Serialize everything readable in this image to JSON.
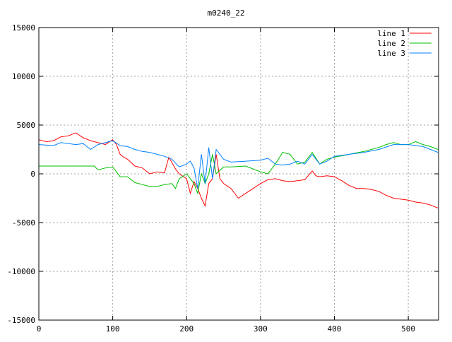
{
  "chart_data": {
    "type": "line",
    "title": "m0240_22",
    "xlabel": "",
    "ylabel": "",
    "xlim": [
      0,
      541
    ],
    "ylim": [
      -15000,
      15000
    ],
    "xticks": [
      0,
      100,
      200,
      300,
      400,
      500
    ],
    "yticks": [
      -15000,
      -10000,
      -5000,
      0,
      5000,
      10000,
      15000
    ],
    "grid": true,
    "legend_position": "top-right",
    "series": [
      {
        "name": "line 1",
        "color": "#ff0000",
        "x": [
          0,
          10,
          20,
          30,
          40,
          50,
          60,
          70,
          80,
          90,
          100,
          105,
          110,
          115,
          120,
          130,
          140,
          150,
          160,
          170,
          176,
          185,
          190,
          200,
          205,
          210,
          215,
          220,
          225,
          230,
          235,
          240,
          245,
          250,
          260,
          270,
          280,
          290,
          300,
          310,
          320,
          330,
          340,
          350,
          360,
          370,
          375,
          380,
          390,
          400,
          410,
          420,
          430,
          440,
          450,
          460,
          470,
          480,
          490,
          500,
          510,
          520,
          530,
          540
        ],
        "y": [
          3500,
          3300,
          3400,
          3800,
          3900,
          4200,
          3700,
          3400,
          3200,
          3000,
          3500,
          3000,
          2000,
          1700,
          1500,
          800,
          600,
          0,
          200,
          100,
          1700,
          500,
          0,
          -500,
          -2000,
          -800,
          -1500,
          -2500,
          -3300,
          -1000,
          -500,
          2000,
          -500,
          -1000,
          -1500,
          -2500,
          -2000,
          -1500,
          -1000,
          -600,
          -500,
          -700,
          -800,
          -700,
          -600,
          300,
          -200,
          -300,
          -200,
          -300,
          -700,
          -1200,
          -1500,
          -1500,
          -1600,
          -1800,
          -2200,
          -2500,
          -2600,
          -2700,
          -2900,
          -3000,
          -3200,
          -3500
        ]
      },
      {
        "name": "line 2",
        "color": "#00c000",
        "x": [
          0,
          75,
          80,
          90,
          100,
          110,
          120,
          130,
          140,
          150,
          160,
          170,
          180,
          185,
          190,
          200,
          210,
          215,
          220,
          225,
          230,
          235,
          240,
          250,
          260,
          280,
          290,
          300,
          310,
          320,
          330,
          340,
          350,
          360,
          370,
          380,
          390,
          400,
          420,
          440,
          460,
          470,
          480,
          490,
          500,
          510,
          520,
          530,
          540
        ],
        "y": [
          800,
          800,
          400,
          600,
          700,
          -300,
          -300,
          -900,
          -1100,
          -1300,
          -1300,
          -1100,
          -1000,
          -1500,
          -500,
          0,
          -1000,
          -2000,
          0,
          -1000,
          0,
          2000,
          0,
          700,
          700,
          800,
          500,
          200,
          0,
          1000,
          2200,
          2000,
          1000,
          1200,
          2200,
          1000,
          1500,
          1700,
          2000,
          2300,
          2700,
          3000,
          3200,
          3000,
          3000,
          3300,
          3000,
          2800,
          2500
        ]
      },
      {
        "name": "line 3",
        "color": "#0080ff",
        "x": [
          0,
          20,
          30,
          50,
          60,
          70,
          80,
          100,
          110,
          120,
          130,
          140,
          150,
          160,
          170,
          180,
          190,
          200,
          205,
          210,
          215,
          220,
          225,
          230,
          235,
          240,
          250,
          260,
          280,
          300,
          310,
          320,
          330,
          340,
          350,
          360,
          370,
          380,
          390,
          400,
          420,
          440,
          460,
          480,
          500,
          520,
          530,
          540
        ],
        "y": [
          3000,
          2900,
          3200,
          3000,
          3100,
          2500,
          3000,
          3400,
          2900,
          2800,
          2500,
          2300,
          2200,
          2000,
          1800,
          1500,
          700,
          1000,
          1300,
          600,
          -1500,
          2000,
          -1000,
          2700,
          -500,
          2500,
          1500,
          1200,
          1300,
          1400,
          1600,
          1000,
          900,
          1000,
          1300,
          1000,
          2000,
          1000,
          1300,
          1800,
          2000,
          2200,
          2500,
          3000,
          3000,
          2800,
          2500,
          2200
        ]
      }
    ]
  }
}
